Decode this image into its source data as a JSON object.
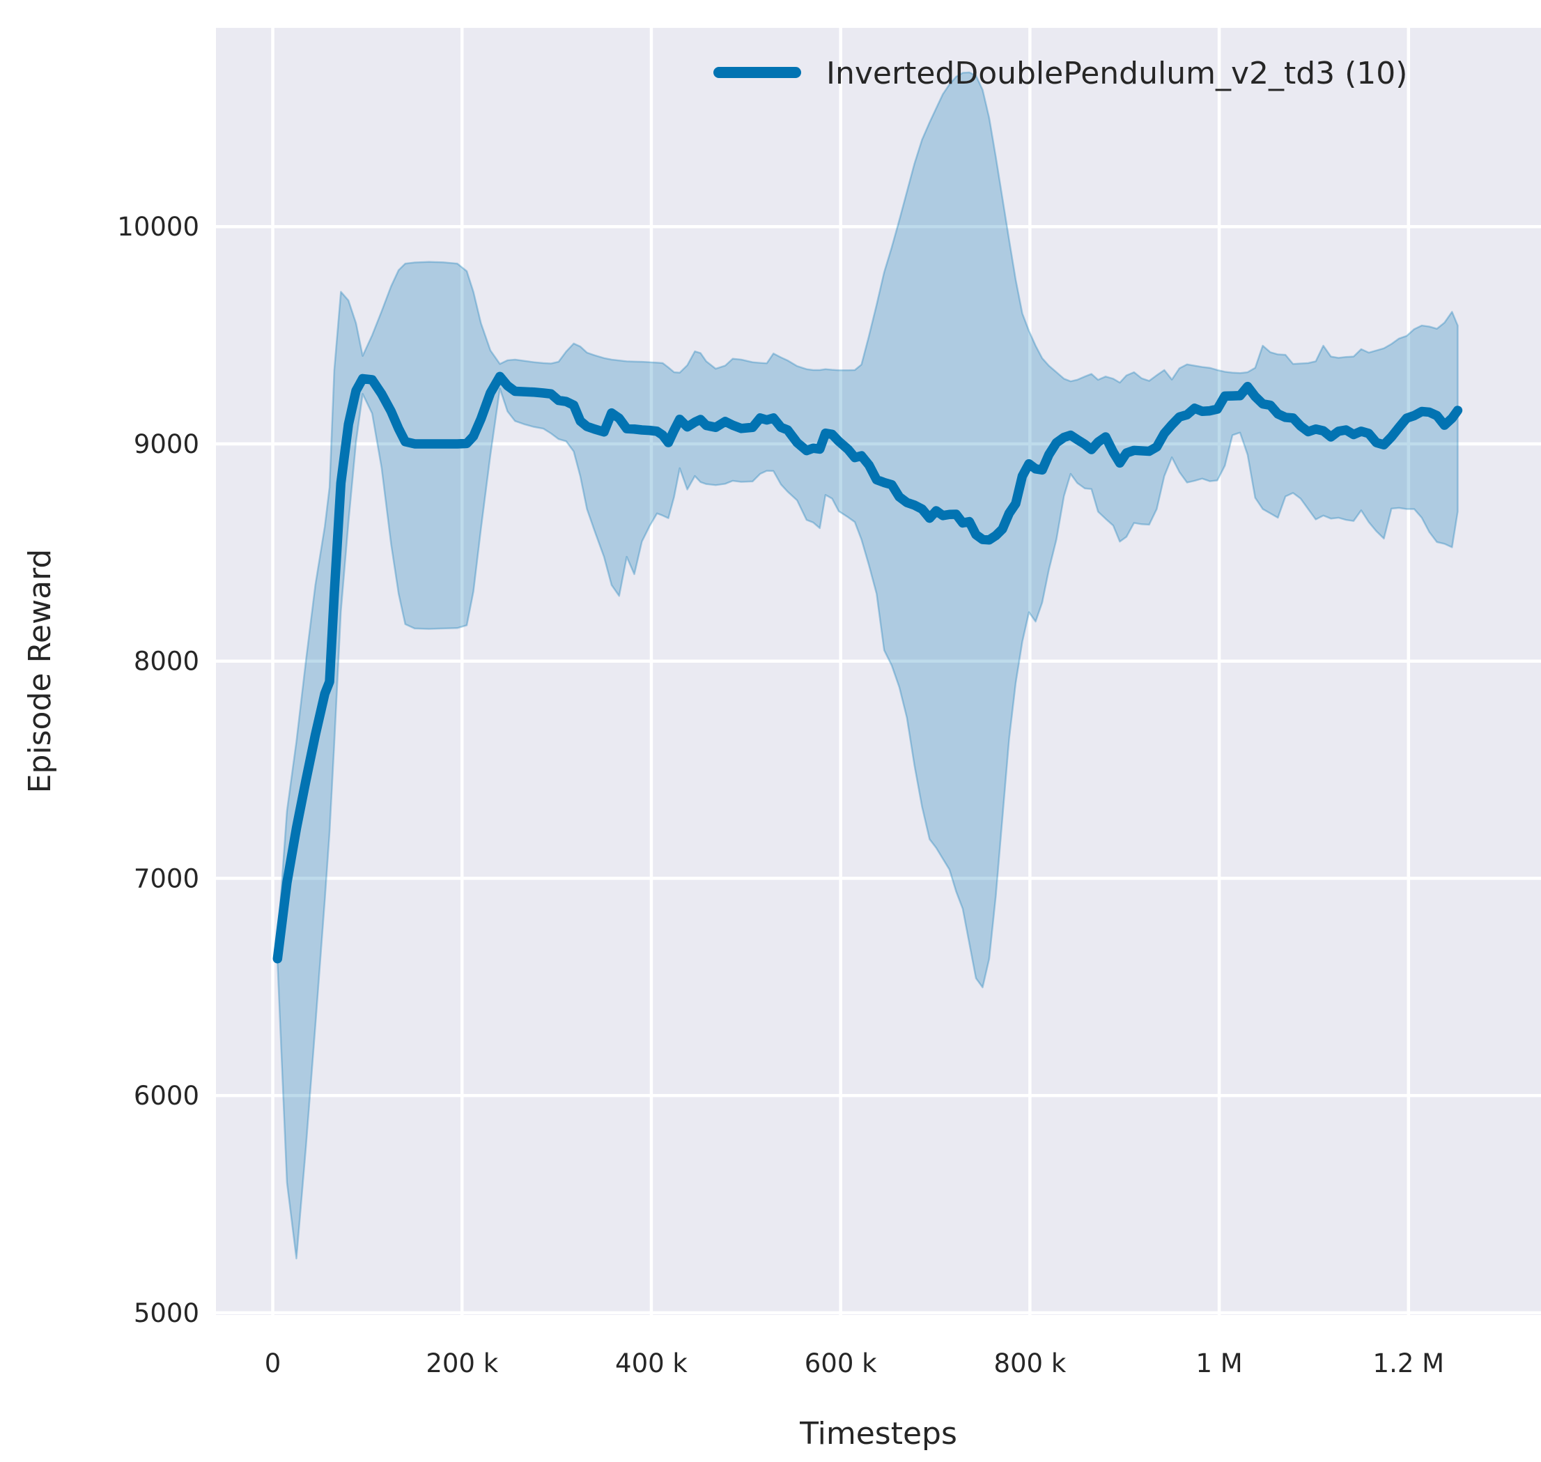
{
  "chart_data": {
    "type": "line",
    "title": "",
    "xlabel": "Timesteps",
    "ylabel": "Episode Reward",
    "legend": [
      "InvertedDoublePendulum_v2_td3 (10)"
    ],
    "legend_position": "upper center-right, no frame",
    "grid": true,
    "style": "seaborn-darkgrid",
    "colors": {
      "figure_bg": "#ffffff",
      "plot_bg": "#eaeaf2",
      "grid": "#ffffff",
      "text": "#262626",
      "line": "#0273b2",
      "band_fill": "rgba(2,115,178,0.26)",
      "band_edge": "rgba(2,115,178,0.30)"
    },
    "xlim": [
      -60000,
      1340000
    ],
    "ylim": [
      4990,
      10915
    ],
    "x_ticks": [
      0,
      200000,
      400000,
      600000,
      800000,
      1000000,
      1200000
    ],
    "x_tick_labels": [
      "0",
      "200 k",
      "400 k",
      "600 k",
      "800 k",
      "1 M",
      "1.2 M"
    ],
    "y_ticks": [
      5000,
      6000,
      7000,
      8000,
      9000,
      10000
    ],
    "y_tick_labels": [
      "5000",
      "6000",
      "7000",
      "8000",
      "9000",
      "10000"
    ],
    "series": [
      {
        "name": "InvertedDoublePendulum_v2_td3 (10)",
        "x": [
          5000,
          15000,
          25000,
          35000,
          45000,
          55000,
          60000,
          65000,
          72000,
          80000,
          88000,
          95000,
          105000,
          115000,
          125000,
          133000,
          140000,
          150000,
          165000,
          180000,
          195000,
          205000,
          212000,
          220000,
          230000,
          240000,
          248000,
          256000,
          266000,
          276000,
          286000,
          294000,
          302000,
          310000,
          318000,
          325000,
          332000,
          340000,
          350000,
          358000,
          366000,
          374000,
          382000,
          390000,
          398000,
          406000,
          412000,
          418000,
          424000,
          430000,
          438000,
          446000,
          452000,
          458000,
          468000,
          478000,
          486000,
          495000,
          507000,
          515000,
          522000,
          529000,
          537000,
          544000,
          554000,
          564000,
          571000,
          578000,
          584000,
          591000,
          598000,
          608000,
          615000,
          622000,
          630000,
          638000,
          646000,
          654000,
          662000,
          670000,
          678000,
          686000,
          694000,
          701000,
          708000,
          715000,
          722000,
          729000,
          736000,
          743000,
          750000,
          757000,
          764000,
          771000,
          778000,
          785000,
          792000,
          799000,
          806000,
          813000,
          820000,
          828000,
          836000,
          843000,
          850000,
          858000,
          865000,
          872000,
          880000,
          888000,
          895000,
          902000,
          910000,
          918000,
          926000,
          934000,
          942000,
          950000,
          958000,
          966000,
          974000,
          982000,
          990000,
          998000,
          1006000,
          1014000,
          1022000,
          1030000,
          1038000,
          1046000,
          1054000,
          1062000,
          1070000,
          1078000,
          1086000,
          1094000,
          1102000,
          1110000,
          1118000,
          1126000,
          1134000,
          1142000,
          1150000,
          1158000,
          1166000,
          1174000,
          1182000,
          1190000,
          1198000,
          1206000,
          1214000,
          1222000,
          1230000,
          1238000,
          1246000,
          1252000
        ],
        "mean": [
          6630,
          6980,
          7230,
          7450,
          7660,
          7850,
          7905,
          8310,
          8820,
          9090,
          9245,
          9300,
          9295,
          9230,
          9150,
          9070,
          9010,
          9000,
          9000,
          9000,
          9000,
          9002,
          9035,
          9115,
          9235,
          9310,
          9268,
          9242,
          9240,
          9238,
          9234,
          9230,
          9200,
          9195,
          9178,
          9105,
          9080,
          9068,
          9055,
          9142,
          9118,
          9070,
          9068,
          9064,
          9062,
          9058,
          9040,
          9006,
          9062,
          9113,
          9078,
          9100,
          9112,
          9085,
          9076,
          9103,
          9086,
          9071,
          9076,
          9119,
          9110,
          9119,
          9076,
          9064,
          9006,
          8969,
          8980,
          8976,
          9049,
          9044,
          9012,
          8974,
          8937,
          8945,
          8902,
          8835,
          8822,
          8812,
          8756,
          8730,
          8718,
          8700,
          8658,
          8692,
          8670,
          8675,
          8676,
          8636,
          8642,
          8582,
          8560,
          8558,
          8578,
          8608,
          8680,
          8725,
          8852,
          8908,
          8885,
          8880,
          8950,
          9005,
          9030,
          9040,
          9020,
          8998,
          8974,
          9008,
          9032,
          8962,
          8912,
          8958,
          8970,
          8968,
          8966,
          8986,
          9048,
          9088,
          9124,
          9134,
          9164,
          9150,
          9152,
          9160,
          9220,
          9221,
          9222,
          9264,
          9218,
          9184,
          9178,
          9138,
          9122,
          9119,
          9082,
          9056,
          9068,
          9060,
          9032,
          9058,
          9064,
          9043,
          9058,
          9048,
          9006,
          8996,
          9032,
          9076,
          9118,
          9130,
          9149,
          9146,
          9130,
          9086,
          9118,
          9154
        ],
        "lower": [
          6615,
          5600,
          5250,
          5760,
          6320,
          6900,
          7210,
          7620,
          8230,
          8640,
          9010,
          9230,
          9140,
          8890,
          8540,
          8310,
          8170,
          8150,
          8148,
          8150,
          8152,
          8165,
          8320,
          8610,
          8950,
          9255,
          9150,
          9105,
          9090,
          9078,
          9070,
          9048,
          9022,
          9012,
          8965,
          8850,
          8700,
          8600,
          8480,
          8350,
          8300,
          8480,
          8400,
          8550,
          8620,
          8680,
          8670,
          8658,
          8755,
          8888,
          8790,
          8852,
          8824,
          8815,
          8810,
          8816,
          8830,
          8825,
          8827,
          8862,
          8876,
          8875,
          8813,
          8780,
          8740,
          8650,
          8638,
          8612,
          8765,
          8748,
          8690,
          8662,
          8640,
          8560,
          8440,
          8310,
          8050,
          7980,
          7880,
          7740,
          7520,
          7330,
          7180,
          7140,
          7090,
          7040,
          6940,
          6860,
          6700,
          6540,
          6498,
          6630,
          6920,
          7280,
          7640,
          7900,
          8090,
          8225,
          8182,
          8270,
          8420,
          8560,
          8760,
          8862,
          8820,
          8795,
          8792,
          8688,
          8655,
          8624,
          8550,
          8572,
          8636,
          8630,
          8628,
          8700,
          8852,
          8938,
          8870,
          8822,
          8830,
          8840,
          8828,
          8832,
          8900,
          9040,
          9052,
          8950,
          8752,
          8700,
          8680,
          8660,
          8758,
          8774,
          8748,
          8700,
          8652,
          8670,
          8656,
          8660,
          8650,
          8645,
          8694,
          8640,
          8598,
          8564,
          8702,
          8705,
          8700,
          8700,
          8660,
          8594,
          8548,
          8540,
          8524,
          8688
        ],
        "upper": [
          6700,
          7310,
          7630,
          8000,
          8350,
          8620,
          8800,
          9340,
          9700,
          9660,
          9555,
          9405,
          9500,
          9610,
          9725,
          9800,
          9830,
          9835,
          9838,
          9836,
          9830,
          9795,
          9700,
          9555,
          9430,
          9368,
          9385,
          9388,
          9382,
          9376,
          9372,
          9370,
          9378,
          9425,
          9462,
          9448,
          9420,
          9408,
          9395,
          9388,
          9384,
          9380,
          9379,
          9378,
          9376,
          9374,
          9372,
          9352,
          9330,
          9328,
          9362,
          9426,
          9418,
          9380,
          9346,
          9360,
          9392,
          9388,
          9376,
          9373,
          9371,
          9416,
          9398,
          9384,
          9358,
          9344,
          9340,
          9340,
          9344,
          9341,
          9339,
          9339,
          9340,
          9365,
          9498,
          9640,
          9790,
          9905,
          10030,
          10160,
          10290,
          10400,
          10480,
          10545,
          10610,
          10655,
          10690,
          10708,
          10710,
          10695,
          10630,
          10500,
          10320,
          10130,
          9940,
          9755,
          9600,
          9520,
          9452,
          9394,
          9360,
          9330,
          9300,
          9288,
          9295,
          9310,
          9322,
          9295,
          9310,
          9300,
          9282,
          9315,
          9330,
          9302,
          9290,
          9316,
          9340,
          9296,
          9348,
          9366,
          9360,
          9354,
          9350,
          9340,
          9332,
          9328,
          9326,
          9330,
          9350,
          9452,
          9422,
          9412,
          9410,
          9368,
          9370,
          9372,
          9380,
          9452,
          9402,
          9396,
          9400,
          9402,
          9436,
          9420,
          9430,
          9440,
          9460,
          9485,
          9497,
          9528,
          9545,
          9540,
          9530,
          9558,
          9608,
          9545
        ]
      }
    ]
  }
}
